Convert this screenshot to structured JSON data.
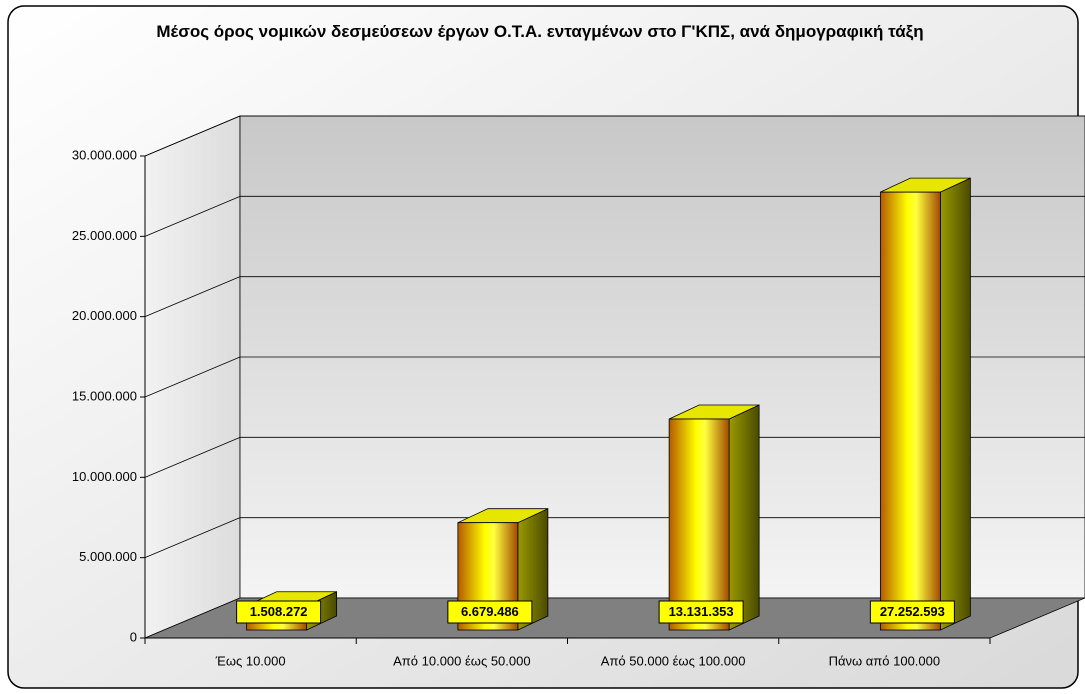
{
  "chart_data": {
    "type": "bar3d",
    "title": "Μέσος όρος νομικών δεσμεύσεων έργων Ο.Τ.Α. ενταγμένων στο Γ'ΚΠΣ, ανά δημογραφική τάξη",
    "categories": [
      "Έως 10.000",
      "Από 10.000 έως 50.000",
      "Από 50.000 έως 100.000",
      "Πάνω από 100.000"
    ],
    "values": [
      1508272,
      6679486,
      13131353,
      27252593
    ],
    "value_labels": [
      "1.508.272",
      "6.679.486",
      "13.131.353",
      "27.252.593"
    ],
    "color": "#ffff00",
    "ylim": [
      0,
      30000000
    ],
    "yticks": [
      0,
      {
        "value": 5000000,
        "label": "5.000.000"
      },
      {
        "value": 10000000,
        "label": "10.000.000"
      },
      {
        "value": 15000000,
        "label": "15.000.000"
      },
      {
        "value": 20000000,
        "label": "20.000.000"
      },
      {
        "value": 25000000,
        "label": "25.000.000"
      },
      {
        "value": 30000000,
        "label": "30.000.000"
      }
    ],
    "grid": true
  }
}
